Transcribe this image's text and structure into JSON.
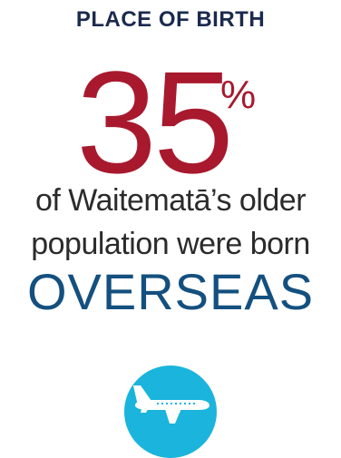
{
  "heading": "PLACE OF BIRTH",
  "stat": {
    "value": "35",
    "unit": "%"
  },
  "description": {
    "line1": "of Waitematā’s older",
    "line2": "population were born"
  },
  "highlight": "OVERSEAS",
  "icon": {
    "name": "airplane-icon"
  },
  "colors": {
    "heading": "#1b2a4e",
    "stat": "#a8192e",
    "body_text": "#2b2b2b",
    "highlight": "#14507f",
    "icon_circle": "#1ab4dc",
    "icon": "#ffffff"
  }
}
